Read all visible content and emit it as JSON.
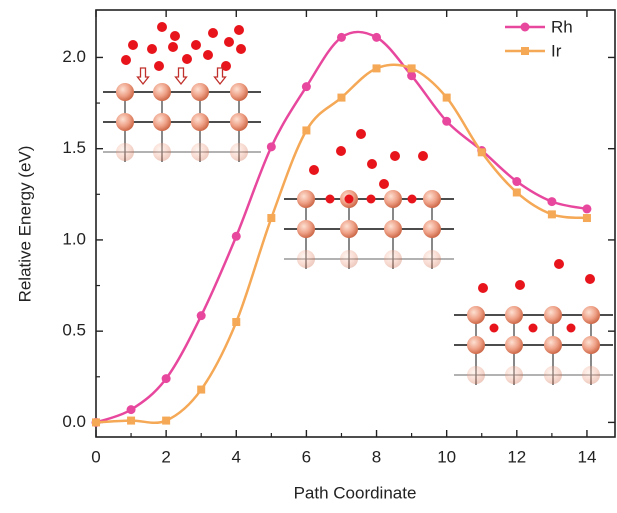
{
  "chart_data": {
    "type": "line",
    "x_label": "Path Coordinate",
    "y_label": "Relative Energy (eV)",
    "x": [
      0,
      1,
      2,
      3,
      4,
      5,
      6,
      7,
      8,
      9,
      10,
      11,
      12,
      13,
      14
    ],
    "series": [
      {
        "name": "Rh",
        "color": "#e8479e",
        "marker": "circle",
        "values": [
          0,
          0.07,
          0.24,
          0.585,
          1.02,
          1.51,
          1.84,
          2.11,
          2.11,
          1.9,
          1.65,
          1.49,
          1.32,
          1.21,
          1.17
        ]
      },
      {
        "name": "Ir",
        "color": "#f5a855",
        "marker": "square",
        "values": [
          0,
          0.01,
          0.01,
          0.18,
          0.55,
          1.12,
          1.6,
          1.78,
          1.94,
          1.94,
          1.78,
          1.48,
          1.26,
          1.14,
          1.12
        ]
      }
    ],
    "xlim": [
      0,
      14.8
    ],
    "ylim": [
      -0.08,
      2.26
    ],
    "xticks": [
      0,
      2,
      4,
      6,
      8,
      10,
      12,
      14
    ],
    "yticks": [
      {
        "value": 0,
        "label": "0.0"
      },
      {
        "value": 0.5,
        "label": "0.5"
      },
      {
        "value": 1,
        "label": "1.0"
      },
      {
        "value": 1.5,
        "label": "1.5"
      },
      {
        "value": 2,
        "label": "2.0"
      }
    ],
    "legend": "upper right",
    "smooth": true
  }
}
